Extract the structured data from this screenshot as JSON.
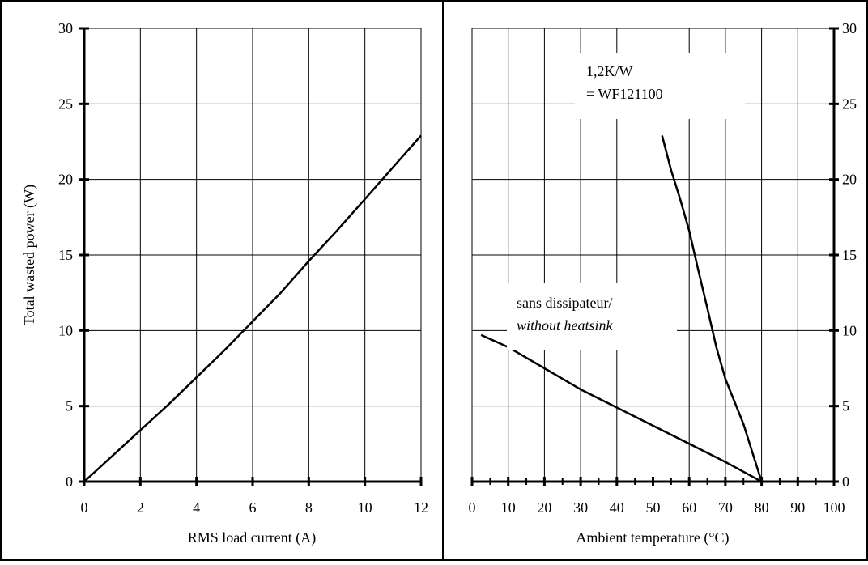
{
  "chart_data": [
    {
      "type": "line",
      "title": "",
      "xlabel": "RMS load current (A)",
      "ylabel": "Total wasted power (W)",
      "xlim": [
        0,
        12
      ],
      "ylim": [
        0,
        30
      ],
      "xticks": [
        "0",
        "2",
        "4",
        "6",
        "8",
        "10",
        "12"
      ],
      "yticks": [
        "0",
        "5",
        "10",
        "15",
        "20",
        "25",
        "30"
      ],
      "grid": true,
      "series": [
        {
          "x": [
            0,
            1,
            2,
            3,
            4,
            5,
            6,
            7,
            8,
            9,
            10,
            11,
            12
          ],
          "y": [
            0,
            1.7,
            3.4,
            5.1,
            6.9,
            8.7,
            10.6,
            12.5,
            14.6,
            16.6,
            18.7,
            20.8,
            22.9
          ]
        }
      ]
    },
    {
      "type": "line",
      "title": "",
      "xlabel": "Ambient temperature (°C)",
      "ylabel": "",
      "xlim": [
        0,
        100
      ],
      "ylim": [
        0,
        30
      ],
      "xticks": [
        "0",
        "10",
        "20",
        "30",
        "40",
        "50",
        "60",
        "70",
        "80",
        "90",
        "100"
      ],
      "yticks": [
        "0",
        "5",
        "10",
        "15",
        "20",
        "25",
        "30"
      ],
      "grid": true,
      "y_axis_side": "right",
      "series": [
        {
          "x": [
            52.5,
            55,
            57.5,
            60,
            62.5,
            65,
            67.5,
            70,
            72.5,
            75,
            77.5,
            80
          ],
          "y": [
            22.9,
            20.6,
            18.7,
            16.6,
            14.0,
            11.5,
            8.9,
            6.8,
            5.3,
            3.8,
            1.9,
            0
          ]
        },
        {
          "x": [
            2.5,
            10,
            20,
            30,
            40,
            50,
            60,
            70,
            80
          ],
          "y": [
            9.7,
            8.9,
            7.5,
            6.1,
            4.9,
            3.7,
            2.5,
            1.3,
            0
          ]
        }
      ],
      "annotations": [
        {
          "lines": [
            "1,2K/W",
            "= WF121100"
          ]
        },
        {
          "lines": [
            "sans dissipateur/",
            "without heatsink"
          ]
        }
      ]
    }
  ]
}
